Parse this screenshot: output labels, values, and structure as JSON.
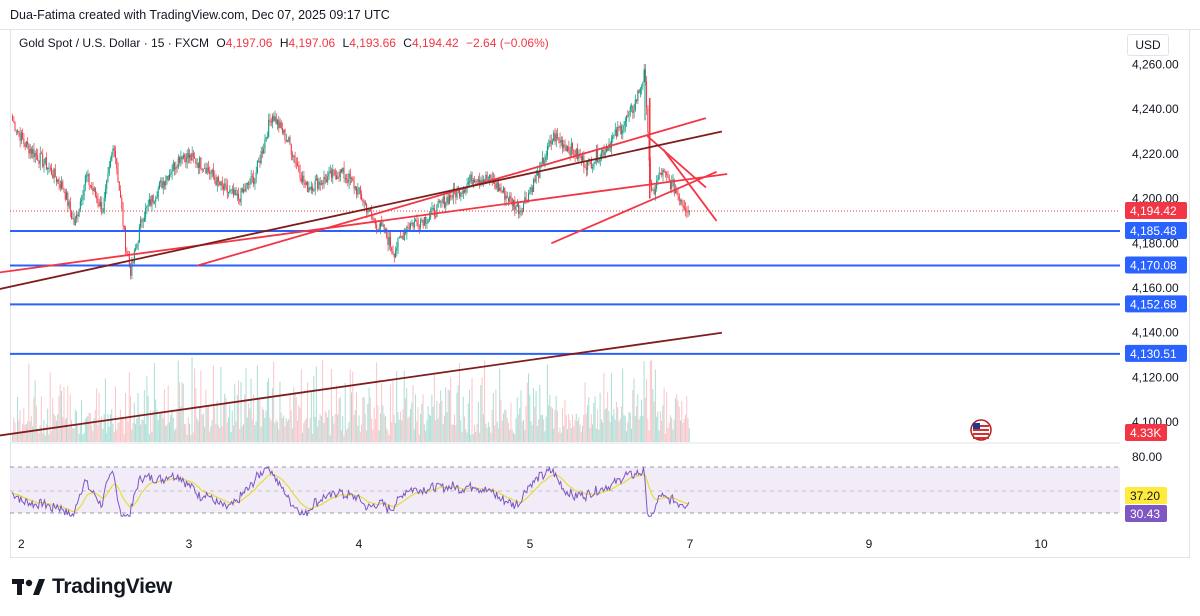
{
  "header": {
    "author_line": "Dua-Fatima created with TradingView.com, Dec 07, 2025 09:17 UTC"
  },
  "legend": {
    "symbol": "Gold Spot / U.S. Dollar · 15 · FXCM",
    "open_label": "O",
    "open": "4,197.06",
    "high_label": "H",
    "high": "4,197.06",
    "low_label": "L",
    "low": "4,193.66",
    "close_label": "C",
    "close": "4,194.42",
    "change": "−2.64 (−0.06%)"
  },
  "currency": "USD",
  "logo": {
    "text": "TradingView"
  },
  "colors": {
    "up": "#089981",
    "down": "#f23645",
    "hline": "#2962ff",
    "trend_red": "#f23645",
    "trend_dark": "#7f1d1d",
    "rsi": "#7e57c2",
    "rsi_ma": "#e6dd3b",
    "rsi_band": "#ede7f6"
  },
  "chart_data": {
    "type": "candlestick",
    "timeframe": "15",
    "x_ticks": [
      "2",
      "3",
      "4",
      "5",
      "7",
      "9",
      "10"
    ],
    "y_ticks": [
      "4,100.00",
      "4,120.00",
      "4,140.00",
      "4,160.00",
      "4,180.00",
      "4,200.00",
      "4,220.00",
      "4,240.00",
      "4,260.00"
    ],
    "ylim": [
      4092,
      4262
    ],
    "price_path": [
      [
        0.0,
        4235
      ],
      [
        0.1,
        4225
      ],
      [
        0.3,
        4215
      ],
      [
        0.45,
        4205
      ],
      [
        0.55,
        4188
      ],
      [
        0.65,
        4210
      ],
      [
        0.8,
        4195
      ],
      [
        0.9,
        4225
      ],
      [
        1.0,
        4180
      ],
      [
        1.05,
        4167
      ],
      [
        1.15,
        4192
      ],
      [
        1.3,
        4205
      ],
      [
        1.5,
        4220
      ],
      [
        1.7,
        4215
      ],
      [
        1.85,
        4205
      ],
      [
        2.0,
        4200
      ],
      [
        2.15,
        4210
      ],
      [
        2.3,
        4238
      ],
      [
        2.45,
        4225
      ],
      [
        2.6,
        4205
      ],
      [
        2.75,
        4208
      ],
      [
        2.9,
        4212
      ],
      [
        3.0,
        4208
      ],
      [
        3.1,
        4200
      ],
      [
        3.2,
        4190
      ],
      [
        3.3,
        4185
      ],
      [
        3.38,
        4176
      ],
      [
        3.5,
        4188
      ],
      [
        3.7,
        4192
      ],
      [
        3.85,
        4200
      ],
      [
        4.0,
        4205
      ],
      [
        4.1,
        4210
      ],
      [
        4.25,
        4208
      ],
      [
        4.4,
        4200
      ],
      [
        4.5,
        4195
      ],
      [
        4.65,
        4210
      ],
      [
        4.8,
        4228
      ],
      [
        4.95,
        4222
      ],
      [
        5.1,
        4215
      ],
      [
        5.25,
        4222
      ],
      [
        5.4,
        4232
      ],
      [
        5.5,
        4240
      ],
      [
        5.6,
        4255
      ],
      [
        5.62,
        4245
      ],
      [
        5.66,
        4200
      ],
      [
        5.75,
        4212
      ],
      [
        5.85,
        4206
      ],
      [
        5.95,
        4198
      ],
      [
        6.0,
        4194.42
      ]
    ],
    "horizontal_levels": [
      {
        "price": 4185.48,
        "label": "4,185.48"
      },
      {
        "price": 4170.08,
        "label": "4,170.08"
      },
      {
        "price": 4152.68,
        "label": "4,152.68"
      },
      {
        "price": 4130.51,
        "label": "4,130.51"
      }
    ],
    "last_price": {
      "price": 4194.42,
      "label": "4,194.42"
    },
    "trendlines": [
      {
        "color": "red",
        "from": [
          1.05,
          4170
        ],
        "to": [
          6.3,
          4236
        ]
      },
      {
        "color": "red",
        "from": [
          -0.2,
          4166
        ],
        "to": [
          6.7,
          4211
        ]
      },
      {
        "color": "red",
        "from": [
          3.4,
          4180
        ],
        "to": [
          6.5,
          4212
        ]
      },
      {
        "color": "red",
        "from": [
          5.2,
          4228
        ],
        "to": [
          6.3,
          4205
        ]
      },
      {
        "color": "red",
        "from": [
          5.5,
          4222
        ],
        "to": [
          6.5,
          4190
        ]
      },
      {
        "color": "dark",
        "from": [
          -0.2,
          4158
        ],
        "to": [
          6.6,
          4230
        ]
      },
      {
        "color": "dark",
        "from": [
          -0.2,
          4093
        ],
        "to": [
          6.6,
          4140
        ]
      }
    ],
    "volume": {
      "label": "4.33K"
    },
    "rsi": {
      "y_ticks": [
        "80.00"
      ],
      "upper": 70,
      "mid": 50,
      "lower": 30,
      "value": {
        "value": 30.43,
        "label": "30.43"
      },
      "ma": {
        "value": 37.2,
        "label": "37.20"
      }
    }
  }
}
